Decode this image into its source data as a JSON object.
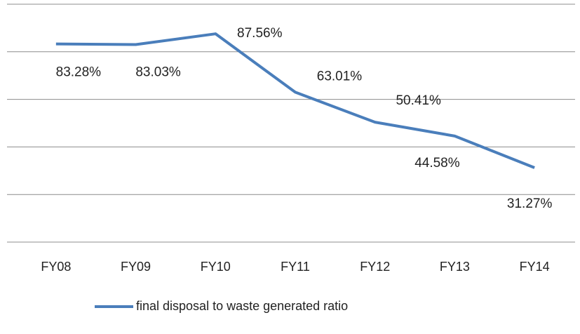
{
  "chart_data": {
    "type": "line",
    "categories": [
      "FY08",
      "FY09",
      "FY10",
      "FY11",
      "FY12",
      "FY13",
      "FY14"
    ],
    "series": [
      {
        "name": "final disposal to waste generated ratio",
        "color": "#4a7ebb",
        "values": [
          83.28,
          83.03,
          87.56,
          63.01,
          50.41,
          44.58,
          31.27
        ],
        "value_labels": [
          "83.28%",
          "83.03%",
          "87.56%",
          "63.01%",
          "50.41%",
          "44.58%",
          "31.27%"
        ]
      }
    ],
    "ylim": [
      0,
      100
    ],
    "yticks": [
      0,
      20,
      40,
      60,
      80,
      100
    ],
    "grid": true,
    "legend": "bottom"
  }
}
